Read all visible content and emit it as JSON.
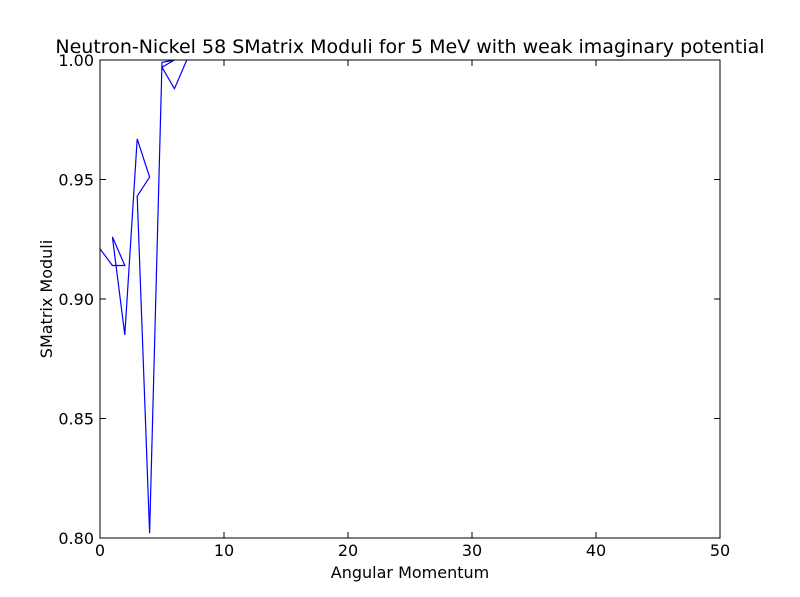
{
  "chart_data": {
    "type": "line",
    "title": "Neutron-Nickel 58 SMatrix Moduli for 5 MeV with weak imaginary potential",
    "xlabel": "Angular Momentum",
    "ylabel": "SMatrix Moduli",
    "xlim": [
      0,
      50
    ],
    "ylim": [
      0.8,
      1.0
    ],
    "xticks": [
      "0",
      "10",
      "20",
      "30",
      "40",
      "50"
    ],
    "yticks": [
      "0.80",
      "0.85",
      "0.90",
      "0.95",
      "1.00"
    ],
    "grid": false,
    "series": [
      {
        "color": "#0000ff",
        "x": [
          0,
          1,
          2,
          1,
          2,
          3,
          4,
          3,
          4,
          5,
          6,
          5,
          6,
          7
        ],
        "y": [
          0.921,
          0.914,
          0.914,
          0.926,
          0.885,
          0.967,
          0.951,
          0.943,
          0.802,
          0.999,
          1.0,
          0.997,
          0.988,
          1.0
        ]
      }
    ]
  }
}
